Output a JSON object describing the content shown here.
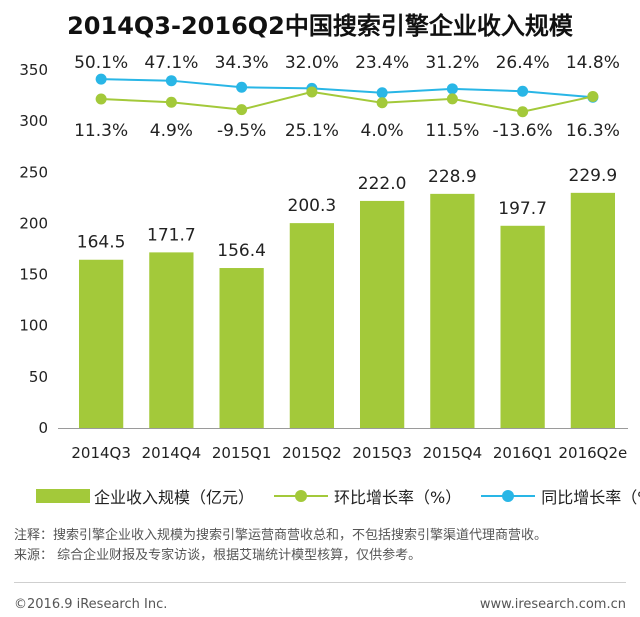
{
  "chart_data": {
    "type": "bar",
    "title": "2014Q3-2016Q2中国搜索引擎企业收入规模",
    "categories": [
      "2014Q3",
      "2014Q4",
      "2015Q1",
      "2015Q2",
      "2015Q3",
      "2015Q4",
      "2016Q1",
      "2016Q2e"
    ],
    "ylim": [
      0,
      350
    ],
    "yticks": [
      0,
      50,
      100,
      150,
      200,
      250,
      300,
      350
    ],
    "series": [
      {
        "name": "企业收入规模（亿元）",
        "type": "bar",
        "color": "#a3c93a",
        "values": [
          164.5,
          171.7,
          156.4,
          200.3,
          222.0,
          228.9,
          197.7,
          229.9
        ],
        "labels": [
          "164.5",
          "171.7",
          "156.4",
          "200.3",
          "222.0",
          "228.9",
          "197.7",
          "229.9"
        ]
      },
      {
        "name": "环比增长率（%）",
        "type": "line",
        "color": "#a3c93a",
        "values": [
          11.3,
          4.9,
          -9.5,
          25.1,
          4.0,
          11.5,
          -13.6,
          16.3
        ],
        "labels": [
          "11.3%",
          "4.9%",
          "-9.5%",
          "25.1%",
          "4.0%",
          "11.5%",
          "-13.6%",
          "16.3%"
        ]
      },
      {
        "name": "同比增长率（%）",
        "type": "line",
        "color": "#29b6e6",
        "values": [
          50.1,
          47.1,
          34.3,
          32.0,
          23.4,
          31.2,
          26.4,
          14.8
        ],
        "labels": [
          "50.1%",
          "47.1%",
          "34.3%",
          "32.0%",
          "23.4%",
          "31.2%",
          "26.4%",
          "14.8%"
        ]
      }
    ],
    "grid": false,
    "legend": "bottom"
  },
  "notes": {
    "note": "注释：搜索引擎企业收入规模为搜索引擎运营商营收总和，不包括搜索引擎渠道代理商营收。",
    "source": "来源：  综合企业财报及专家访谈，根据艾瑞统计模型核算，仅供参考。"
  },
  "footer": {
    "copyright": "©2016.9  iResearch Inc.",
    "website": "www.iresearch.com.cn"
  }
}
